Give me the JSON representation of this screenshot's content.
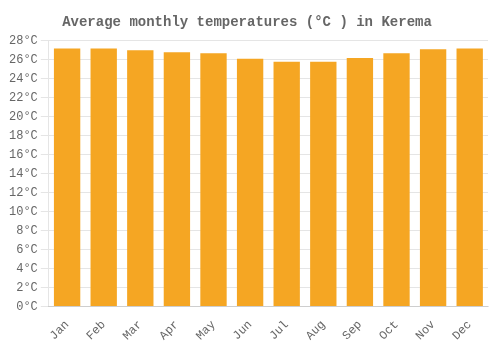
{
  "chart_data": {
    "type": "bar",
    "title": "Average monthly temperatures (°C ) in Kerema",
    "categories": [
      "Jan",
      "Feb",
      "Mar",
      "Apr",
      "May",
      "Jun",
      "Jul",
      "Aug",
      "Sep",
      "Oct",
      "Nov",
      "Dec"
    ],
    "values": [
      27.2,
      27.2,
      27.0,
      26.8,
      26.7,
      26.1,
      25.8,
      25.8,
      26.2,
      26.7,
      27.1,
      27.2
    ],
    "color": "#F5A623",
    "ylim": [
      0,
      28
    ],
    "yticks": [
      {
        "value": 0,
        "label": "0°C"
      },
      {
        "value": 2,
        "label": "2°C"
      },
      {
        "value": 4,
        "label": "4°C"
      },
      {
        "value": 6,
        "label": "6°C"
      },
      {
        "value": 8,
        "label": "8°C"
      },
      {
        "value": 10,
        "label": "10°C"
      },
      {
        "value": 12,
        "label": "12°C"
      },
      {
        "value": 14,
        "label": "14°C"
      },
      {
        "value": 16,
        "label": "16°C"
      },
      {
        "value": 18,
        "label": "18°C"
      },
      {
        "value": 20,
        "label": "20°C"
      },
      {
        "value": 22,
        "label": "22°C"
      },
      {
        "value": 24,
        "label": "24°C"
      },
      {
        "value": 26,
        "label": "26°C"
      },
      {
        "value": 28,
        "label": "28°C"
      }
    ],
    "grid": true
  }
}
